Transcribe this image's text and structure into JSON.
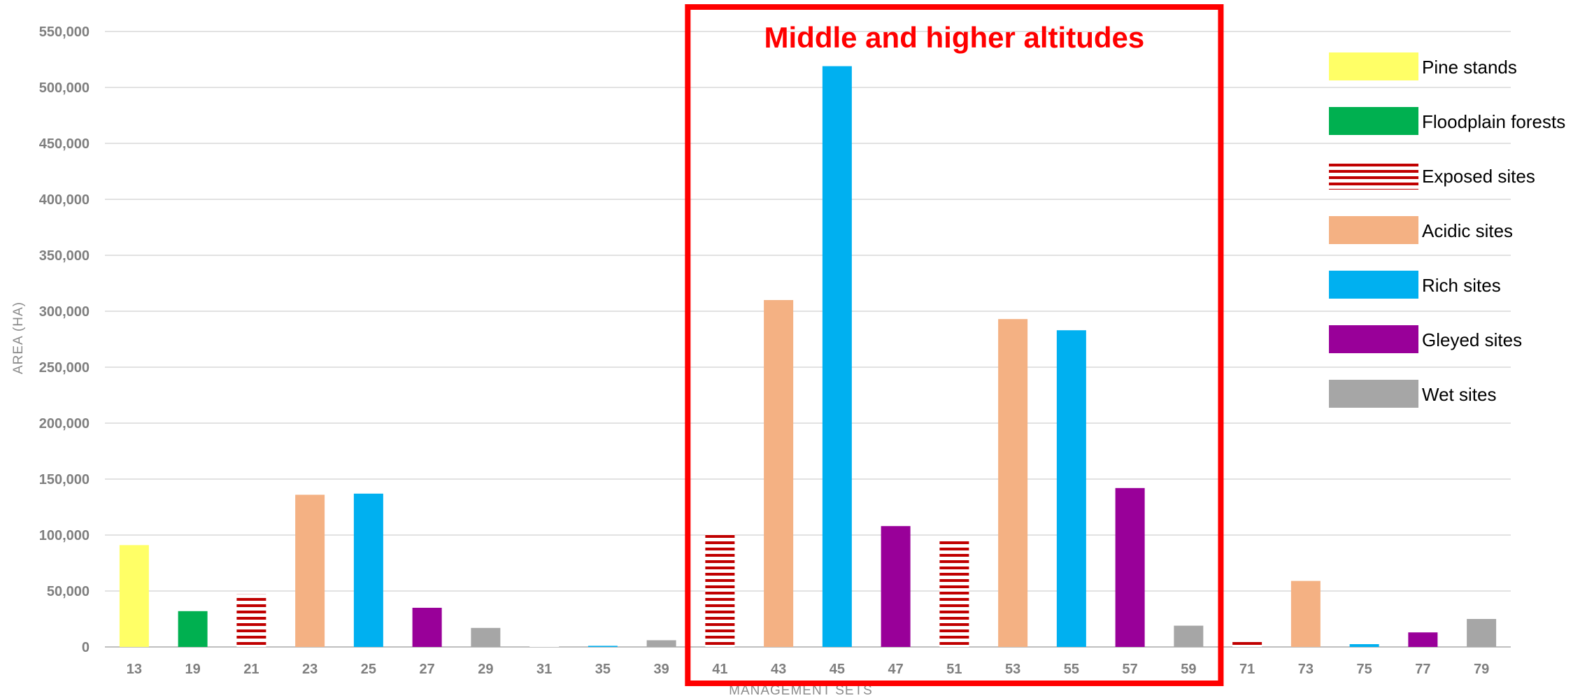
{
  "chart_data": {
    "type": "bar",
    "xlabel": "MANAGEMENT SETS",
    "ylabel": "AREA (HA)",
    "ylim": [
      0,
      550000
    ],
    "yticks": [
      0,
      50000,
      100000,
      150000,
      200000,
      250000,
      300000,
      350000,
      400000,
      450000,
      500000,
      550000
    ],
    "ytick_labels": [
      "0",
      "50,000",
      "100,000",
      "150,000",
      "200,000",
      "250,000",
      "300,000",
      "350,000",
      "400,000",
      "450,000",
      "500,000",
      "550,000"
    ],
    "grid": true,
    "legend_position": "top-right",
    "categories": [
      "13",
      "19",
      "21",
      "23",
      "25",
      "27",
      "29",
      "31",
      "35",
      "39",
      "41",
      "43",
      "45",
      "47",
      "51",
      "53",
      "55",
      "57",
      "59",
      "71",
      "73",
      "75",
      "77",
      "79"
    ],
    "values": [
      91000,
      32000,
      47000,
      136000,
      137000,
      35000,
      17000,
      1500,
      1000,
      6000,
      102000,
      310000,
      519000,
      108000,
      97000,
      293000,
      283000,
      142000,
      19000,
      6000,
      59000,
      2500,
      13000,
      25000
    ],
    "bar_types": [
      "Pine stands",
      "Floodplain forests",
      "Exposed sites",
      "Acidic sites",
      "Rich sites",
      "Gleyed sites",
      "Wet sites",
      "Exposed sites",
      "Rich sites",
      "Wet sites",
      "Exposed sites",
      "Acidic sites",
      "Rich sites",
      "Gleyed sites",
      "Exposed sites",
      "Acidic sites",
      "Rich sites",
      "Gleyed sites",
      "Wet sites",
      "Exposed sites",
      "Acidic sites",
      "Rich sites",
      "Gleyed sites",
      "Wet sites"
    ],
    "legend": [
      {
        "name": "Pine stands",
        "color": "#ffff66",
        "pattern": "solid"
      },
      {
        "name": "Floodplain forests",
        "color": "#00b050",
        "pattern": "solid"
      },
      {
        "name": "Exposed sites",
        "color": "#c00000",
        "pattern": "horizontal-stripes"
      },
      {
        "name": "Acidic sites",
        "color": "#f4b183",
        "pattern": "solid"
      },
      {
        "name": "Rich sites",
        "color": "#00b0f0",
        "pattern": "solid"
      },
      {
        "name": "Gleyed sites",
        "color": "#990099",
        "pattern": "solid"
      },
      {
        "name": "Wet sites",
        "color": "#a6a6a6",
        "pattern": "solid"
      }
    ],
    "annotation": {
      "text": "Middle and higher altitudes",
      "color": "#ff0000",
      "from_category": "41",
      "to_category": "59"
    }
  }
}
